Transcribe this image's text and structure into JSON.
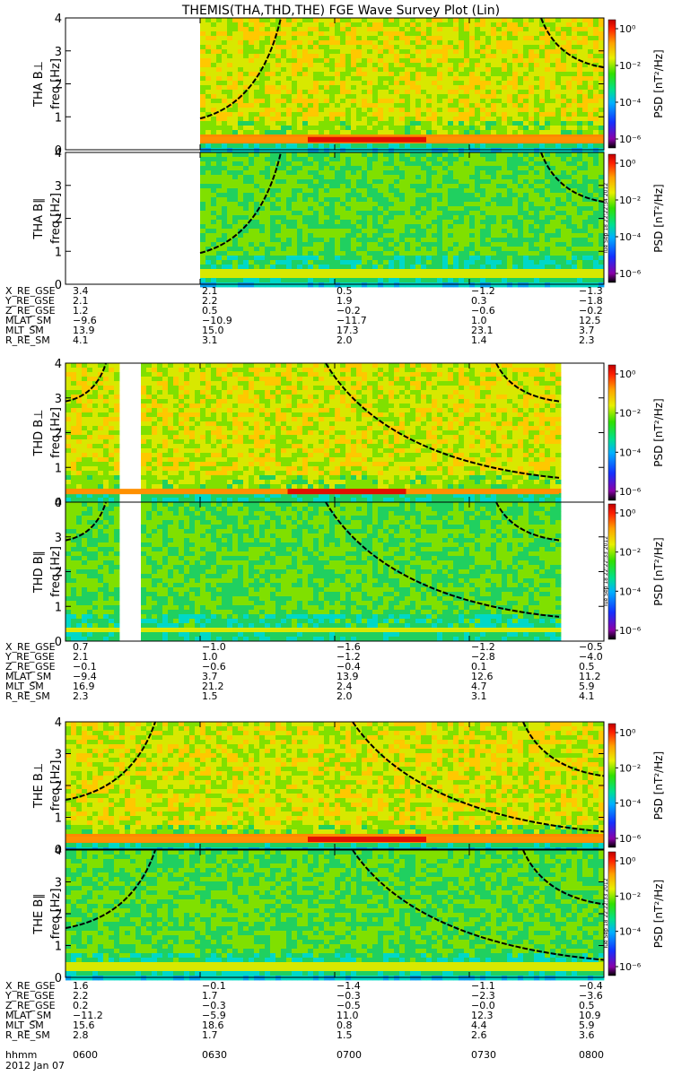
{
  "title": "THEMIS(THA,THD,THE) FGE Wave Survey Plot (Lin)",
  "colorbar": {
    "label": "PSD [nT²/Hz]",
    "ticks": [
      "10⁰",
      "10⁻²",
      "10⁻⁴",
      "10⁻⁶"
    ]
  },
  "stamps": [
    "Tue Sep 18 22:22:34 2012",
    "Tue Sep 18 22:22:33 2012",
    "Tue Sep 18 22:22:33 2012"
  ],
  "probes": [
    {
      "panels": [
        {
          "ylabel": "THA B⊥",
          "axis": "freq [Hz]"
        },
        {
          "ylabel": "THA B∥",
          "axis": "freq [Hz]"
        }
      ],
      "ephemeris": [
        {
          "label": "X_RE_GSE",
          "values": [
            "3.4",
            "2.1",
            "0.5",
            "−1.2",
            "−1.3"
          ]
        },
        {
          "label": "Y_RE_GSE",
          "values": [
            "2.1",
            "2.2",
            "1.9",
            "0.3",
            "−1.8"
          ]
        },
        {
          "label": "Z_RE_GSE",
          "values": [
            "1.2",
            "0.5",
            "−0.2",
            "−0.6",
            "−0.2"
          ]
        },
        {
          "label": "MLAT_SM",
          "values": [
            "−9.6",
            "−10.9",
            "−11.7",
            "1.0",
            "12.5"
          ]
        },
        {
          "label": "MLT_SM",
          "values": [
            "13.9",
            "15.0",
            "17.3",
            "23.1",
            "3.7"
          ]
        },
        {
          "label": "R_RE_SM",
          "values": [
            "4.1",
            "3.1",
            "2.0",
            "1.4",
            "2.3"
          ]
        }
      ]
    },
    {
      "panels": [
        {
          "ylabel": "THD B⊥",
          "axis": "freq [Hz]"
        },
        {
          "ylabel": "THD B∥",
          "axis": "freq [Hz]"
        }
      ],
      "ephemeris": [
        {
          "label": "X_RE_GSE",
          "values": [
            "0.7",
            "−1.0",
            "−1.6",
            "−1.2",
            "−0.5"
          ]
        },
        {
          "label": "Y_RE_GSE",
          "values": [
            "2.1",
            "1.0",
            "−1.2",
            "−2.8",
            "−4.0"
          ]
        },
        {
          "label": "Z_RE_GSE",
          "values": [
            "−0.1",
            "−0.6",
            "−0.4",
            "0.1",
            "0.5"
          ]
        },
        {
          "label": "MLAT_SM",
          "values": [
            "−9.4",
            "3.7",
            "13.9",
            "12.6",
            "11.2"
          ]
        },
        {
          "label": "MLT_SM",
          "values": [
            "16.9",
            "21.2",
            "2.4",
            "4.7",
            "5.9"
          ]
        },
        {
          "label": "R_RE_SM",
          "values": [
            "2.3",
            "1.5",
            "2.0",
            "3.1",
            "4.1"
          ]
        }
      ]
    },
    {
      "panels": [
        {
          "ylabel": "THE B⊥",
          "axis": "freq [Hz]"
        },
        {
          "ylabel": "THE B∥",
          "axis": "freq [Hz]"
        }
      ],
      "ephemeris": [
        {
          "label": "X_RE_GSE",
          "values": [
            "1.6",
            "−0.1",
            "−1.4",
            "−1.1",
            "−0.4"
          ]
        },
        {
          "label": "Y_RE_GSE",
          "values": [
            "2.2",
            "1.7",
            "−0.3",
            "−2.3",
            "−3.6"
          ]
        },
        {
          "label": "Z_RE_GSE",
          "values": [
            "0.2",
            "−0.3",
            "−0.5",
            "−0.0",
            "0.5"
          ]
        },
        {
          "label": "MLAT_SM",
          "values": [
            "−11.2",
            "−5.9",
            "11.0",
            "12.3",
            "10.9"
          ]
        },
        {
          "label": "MLT_SM",
          "values": [
            "15.6",
            "18.6",
            "0.8",
            "4.4",
            "5.9"
          ]
        },
        {
          "label": "R_RE_SM",
          "values": [
            "2.8",
            "1.7",
            "1.5",
            "2.6",
            "3.6"
          ]
        }
      ]
    }
  ],
  "time_axis": {
    "label": "hhmm",
    "ticks": [
      "0600",
      "0630",
      "0700",
      "0730",
      "0800"
    ],
    "date": "2012 Jan 07"
  },
  "colors": {
    "bg": "#ffffff",
    "axis": "#000000",
    "line": "#000000"
  },
  "chart_data": {
    "type": "heatmap",
    "x_range": [
      "06:00",
      "08:00"
    ],
    "y_range": [
      0,
      4
    ],
    "y_ticks": [
      0,
      1,
      2,
      3,
      4
    ],
    "z_scale": "log",
    "z_range": [
      "1e-6",
      "1e1"
    ],
    "data_coverage": [
      {
        "probe": "THA",
        "start": "06:30",
        "end": "08:00"
      },
      {
        "probe": "THD",
        "start": "06:00",
        "end": "07:50",
        "gap": [
          "06:13",
          "06:16"
        ]
      },
      {
        "probe": "THE",
        "start": "06:00",
        "end": "08:00"
      }
    ],
    "cyclotron_curves": [
      {
        "probe": "THA",
        "segments": [
          {
            "start": "06:30",
            "end": "06:48",
            "f_start": 0.95,
            "f_end": 4.1
          },
          {
            "start": "07:46",
            "end": "08:00",
            "f_start": 4.1,
            "f_end": 2.5
          }
        ]
      },
      {
        "probe": "THD",
        "segments": [
          {
            "start": "06:00",
            "end": "06:09",
            "f_start": 2.9,
            "f_end": 4.1
          },
          {
            "start": "06:58",
            "end": "07:50",
            "f_start": 4.1,
            "f_end": 0.7
          },
          {
            "start": "07:36",
            "end": "07:50",
            "f_start": 4.1,
            "f_end": 2.9
          }
        ]
      },
      {
        "probe": "THE",
        "segments": [
          {
            "start": "06:00",
            "end": "06:20",
            "f_start": 1.55,
            "f_end": 4.1
          },
          {
            "start": "07:04",
            "end": "08:00",
            "f_start": 4.1,
            "f_end": 0.55
          },
          {
            "start": "07:42",
            "end": "08:00",
            "f_start": 4.1,
            "f_end": 2.3
          }
        ]
      }
    ]
  }
}
